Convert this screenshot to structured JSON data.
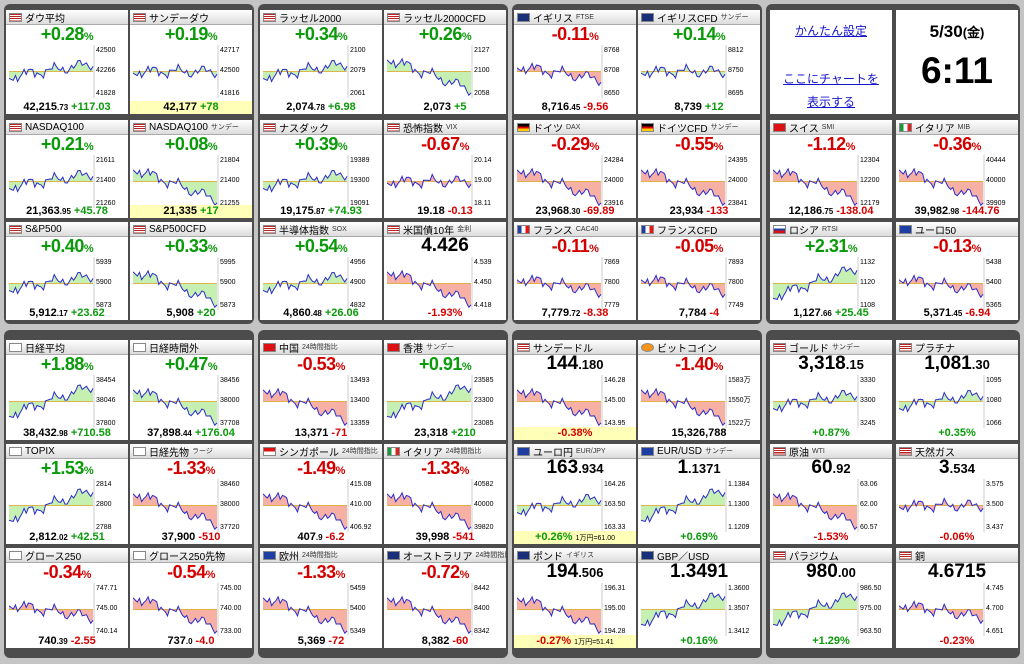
{
  "settings": {
    "quick_settings_label": "かんたん設定",
    "show_chart_line1": "ここにチャートを",
    "show_chart_line2": "表示する"
  },
  "clock": {
    "date": "5/30",
    "weekday": "(金)",
    "time": "6:11"
  },
  "colors": {
    "positive": "#0a9a0a",
    "negative": "#d40000",
    "highlight": "#ffffb8"
  },
  "cards": [
    {
      "name": "dow",
      "title": "ダウ平均",
      "flag": "us",
      "chg": "+0.28",
      "dir": "pos",
      "price": "42,215",
      "dec": ".73",
      "diff": "+117.03",
      "y": [
        "42500",
        "42266",
        "41828"
      ],
      "trend": "flat-up"
    },
    {
      "name": "sun-dow",
      "title": "サンデーダウ",
      "flag": "us",
      "chg": "+0.19",
      "dir": "pos",
      "price": "42,177",
      "diff": "+78",
      "hl": true,
      "y": [
        "42717",
        "42500",
        "41816"
      ],
      "trend": "flat"
    },
    {
      "name": "russell2000",
      "title": "ラッセル2000",
      "flag": "us",
      "chg": "+0.34",
      "dir": "pos",
      "price": "2,074",
      "dec": ".78",
      "diff": "+6.98",
      "y": [
        "2100",
        "2079",
        "2061"
      ],
      "trend": "flat-up"
    },
    {
      "name": "russell2000cfd",
      "title": "ラッセル2000CFD",
      "flag": "us",
      "chg": "+0.26",
      "dir": "pos",
      "price": "2,073",
      "diff": "+5",
      "y": [
        "2127",
        "2100",
        "2058"
      ],
      "trend": "down"
    },
    {
      "name": "uk",
      "title": "イギリス",
      "sub": "FTSE",
      "flag": "uk",
      "chg": "-0.11",
      "dir": "neg",
      "price": "8,716",
      "dec": ".45",
      "diff": "-9.56",
      "y": [
        "8768",
        "8708",
        "8650"
      ],
      "trend": "flat-down"
    },
    {
      "name": "ukcfd",
      "title": "イギリスCFD",
      "sub": "サンデー",
      "flag": "uk",
      "chg": "+0.14",
      "dir": "pos",
      "price": "8,739",
      "diff": "+12",
      "y": [
        "8812",
        "8750",
        "8695"
      ],
      "trend": "flat"
    },
    {
      "name": "nasdaq100",
      "title": "NASDAQ100",
      "flag": "us",
      "chg": "+0.21",
      "dir": "pos",
      "price": "21,363",
      "dec": ".95",
      "diff": "+45.78",
      "y": [
        "21611",
        "21400",
        "21260"
      ],
      "trend": "flat-up"
    },
    {
      "name": "nasdaq100sun",
      "title": "NASDAQ100",
      "sub": "サンデー",
      "flag": "us",
      "chg": "+0.08",
      "dir": "pos",
      "price": "21,335",
      "diff": "+17",
      "hl": true,
      "y": [
        "21804",
        "21400",
        "21255"
      ],
      "trend": "down"
    },
    {
      "name": "nasdaq",
      "title": "ナスダック",
      "flag": "us",
      "chg": "+0.39",
      "dir": "pos",
      "price": "19,175",
      "dec": ".87",
      "diff": "+74.93",
      "y": [
        "19389",
        "19300",
        "19091"
      ],
      "trend": "flat-up"
    },
    {
      "name": "vix",
      "title": "恐怖指数",
      "sub": "VIX",
      "flag": "us",
      "chg": "-0.67",
      "dir": "neg",
      "price": "19.18",
      "diff": "-0.13",
      "y": [
        "20.14",
        "19.00",
        "18.11"
      ],
      "trend": "flat"
    },
    {
      "name": "germany",
      "title": "ドイツ",
      "sub": "DAX",
      "flag": "de",
      "chg": "-0.29",
      "dir": "neg",
      "price": "23,968",
      "dec": ".30",
      "diff": "-69.89",
      "y": [
        "24284",
        "24000",
        "23916"
      ],
      "trend": "down"
    },
    {
      "name": "germanycfd",
      "title": "ドイツCFD",
      "sub": "サンデー",
      "flag": "de",
      "chg": "-0.55",
      "dir": "neg",
      "price": "23,934",
      "diff": "-133",
      "y": [
        "24395",
        "24000",
        "23841"
      ],
      "trend": "down"
    },
    {
      "name": "swiss",
      "title": "スイス",
      "sub": "SMI",
      "flag": "ch",
      "chg": "-1.12",
      "dir": "neg",
      "price": "12,186",
      "dec": ".75",
      "diff": "-138.04",
      "y": [
        "12304",
        "12200",
        "12179"
      ],
      "trend": "down"
    },
    {
      "name": "italy",
      "title": "イタリア",
      "sub": "MIB",
      "flag": "it",
      "chg": "-0.36",
      "dir": "neg",
      "price": "39,982",
      "dec": ".98",
      "diff": "-144.76",
      "y": [
        "40444",
        "40000",
        "39909"
      ],
      "trend": "down"
    },
    {
      "name": "sp500",
      "title": "S&P500",
      "flag": "us",
      "chg": "+0.40",
      "dir": "pos",
      "price": "5,912",
      "dec": ".17",
      "diff": "+23.62",
      "y": [
        "5939",
        "5900",
        "5873"
      ],
      "trend": "flat-up"
    },
    {
      "name": "sp500cfd",
      "title": "S&P500CFD",
      "flag": "us",
      "chg": "+0.33",
      "dir": "pos",
      "price": "5,908",
      "diff": "+20",
      "y": [
        "5995",
        "5900",
        "5873"
      ],
      "trend": "down"
    },
    {
      "name": "sox",
      "title": "半導体指数",
      "sub": "SOX",
      "flag": "us",
      "chg": "+0.54",
      "dir": "pos",
      "price": "4,860",
      "dec": ".48",
      "diff": "+26.06",
      "y": [
        "4956",
        "4900",
        "4832"
      ],
      "trend": "flat-up"
    },
    {
      "name": "us10y",
      "title": "米国債10年",
      "sub": "金利",
      "flag": "us",
      "big": "4.426",
      "bottomchg": "-1.93",
      "dir": "neg",
      "y": [
        "4.539",
        "4.450",
        "4.418"
      ],
      "trend": "down"
    },
    {
      "name": "france",
      "title": "フランス",
      "sub": "CAC40",
      "flag": "fr",
      "chg": "-0.11",
      "dir": "neg",
      "price": "7,779",
      "dec": ".72",
      "diff": "-8.38",
      "y": [
        "7869",
        "7800",
        "7779"
      ],
      "trend": "flat-down"
    },
    {
      "name": "francecfd",
      "title": "フランスCFD",
      "flag": "fr",
      "chg": "-0.05",
      "dir": "neg",
      "price": "7,784",
      "diff": "-4",
      "y": [
        "7893",
        "7800",
        "7749"
      ],
      "trend": "flat-down"
    },
    {
      "name": "russia",
      "title": "ロシア",
      "sub": "RTSI",
      "flag": "ru",
      "chg": "+2.31",
      "dir": "pos",
      "price": "1,127",
      "dec": ".66",
      "diff": "+25.45",
      "y": [
        "1132",
        "1120",
        "1108"
      ],
      "trend": "up"
    },
    {
      "name": "euro50",
      "title": "ユーロ50",
      "flag": "eu",
      "chg": "-0.13",
      "dir": "neg",
      "price": "5,371",
      "dec": ".45",
      "diff": "-6.94",
      "y": [
        "5438",
        "5400",
        "5365"
      ],
      "trend": "flat-down"
    },
    {
      "name": "nikkei",
      "title": "日経平均",
      "flag": "jp",
      "chg": "+1.88",
      "dir": "pos",
      "price": "38,432",
      "dec": ".98",
      "diff": "+710.58",
      "y": [
        "38454",
        "38046",
        "37800"
      ],
      "trend": "up"
    },
    {
      "name": "nikkeiext",
      "title": "日経時間外",
      "flag": "jp",
      "chg": "+0.47",
      "dir": "pos",
      "price": "37,898",
      "dec": ".44",
      "diff": "+176.04",
      "y": [
        "38456",
        "38000",
        "37708"
      ],
      "trend": "down"
    },
    {
      "name": "china",
      "title": "中国",
      "sub": "24時間指比",
      "flag": "cn",
      "chg": "-0.53",
      "dir": "neg",
      "price": "13,371",
      "diff": "-71",
      "y": [
        "13493",
        "13400",
        "13359"
      ],
      "trend": "down"
    },
    {
      "name": "hongkong",
      "title": "香港",
      "sub": "サンデー",
      "flag": "hk",
      "chg": "+0.91",
      "dir": "pos",
      "price": "23,318",
      "diff": "+210",
      "y": [
        "23585",
        "23300",
        "23085"
      ],
      "trend": "up"
    },
    {
      "name": "sunusdjpy",
      "title": "サンデードル",
      "flag": "us",
      "big": "144",
      "dec": ".180",
      "bottomchg": "-0.38",
      "dir": "neg",
      "hlbottom": true,
      "y": [
        "146.28",
        "145.00",
        "143.95"
      ],
      "trend": "down"
    },
    {
      "name": "bitcoin",
      "title": "ビットコイン",
      "flag": "btc",
      "chg": "-1.40",
      "dir": "neg",
      "price": "15,326,788",
      "y": [
        "1583万",
        "1550万",
        "1522万"
      ],
      "trend": "down"
    },
    {
      "name": "gold",
      "title": "ゴールド",
      "sub": "サンデー",
      "flag": "us",
      "big": "3,318",
      "dec": ".15",
      "bottomchg": "+0.87",
      "dir": "pos",
      "y": [
        "3330",
        "3300",
        "3245"
      ],
      "trend": "flat-up"
    },
    {
      "name": "platinum",
      "title": "プラチナ",
      "flag": "us",
      "big": "1,081",
      "dec": ".30",
      "bottomchg": "+0.35",
      "dir": "pos",
      "y": [
        "1095",
        "1080",
        "1066"
      ],
      "trend": "flat-up"
    },
    {
      "name": "topix",
      "title": "TOPIX",
      "flag": "jp",
      "chg": "+1.53",
      "dir": "pos",
      "price": "2,812",
      "dec": ".02",
      "diff": "+42.51",
      "y": [
        "2814",
        "2800",
        "2788"
      ],
      "trend": "up"
    },
    {
      "name": "nikkeifut",
      "title": "日経先物",
      "sub": "ラージ",
      "flag": "jp",
      "chg": "-1.33",
      "dir": "neg",
      "price": "37,900",
      "diff": "-510",
      "y": [
        "38460",
        "38000",
        "37720"
      ],
      "trend": "down"
    },
    {
      "name": "singapore",
      "title": "シンガポール",
      "sub": "24時間指比",
      "flag": "sg",
      "chg": "-1.49",
      "dir": "neg",
      "price": "407",
      "dec": ".9",
      "diff": "-6.2",
      "y": [
        "415.08",
        "410.00",
        "406.92"
      ],
      "trend": "down"
    },
    {
      "name": "italy24",
      "title": "イタリア",
      "sub": "24時間指比",
      "flag": "it",
      "chg": "-1.33",
      "dir": "neg",
      "price": "39,998",
      "diff": "-541",
      "y": [
        "40582",
        "40000",
        "39820"
      ],
      "trend": "down"
    },
    {
      "name": "eurjpy",
      "title": "ユーロ円",
      "sub": "EUR/JPY",
      "flag": "eu",
      "big": "163",
      "dec": ".934",
      "bottomchg": "+0.26",
      "dir": "pos",
      "bottomnote": "1万円=61.00",
      "hlbottom": true,
      "y": [
        "164.26",
        "163.50",
        "163.33"
      ],
      "trend": "flat-up"
    },
    {
      "name": "eurusd",
      "title": "EUR/USD",
      "sub": "サンデー",
      "flag": "eu",
      "big": "1",
      "dec": ".1371",
      "bottomchg": "+0.69",
      "dir": "pos",
      "y": [
        "1.1384",
        "1.1300",
        "1.1209"
      ],
      "trend": "up"
    },
    {
      "name": "crude",
      "title": "原油",
      "sub": "WTI",
      "flag": "us",
      "big": "60",
      "dec": ".92",
      "bottomchg": "-1.53",
      "dir": "neg",
      "y": [
        "63.06",
        "62.00",
        "60.57"
      ],
      "trend": "down"
    },
    {
      "name": "natgas",
      "title": "天然ガス",
      "flag": "us",
      "big": "3",
      "dec": ".534",
      "bottomchg": "-0.06",
      "dir": "neg",
      "y": [
        "3.575",
        "3.500",
        "3.437"
      ],
      "trend": "flat"
    },
    {
      "name": "growth250",
      "title": "グロース250",
      "flag": "jp",
      "chg": "-0.34",
      "dir": "neg",
      "price": "740",
      "dec": ".39",
      "diff": "-2.55",
      "y": [
        "747.71",
        "745.00",
        "740.14"
      ],
      "trend": "flat-down"
    },
    {
      "name": "growth250fut",
      "title": "グロース250先物",
      "flag": "jp",
      "chg": "-0.54",
      "dir": "neg",
      "price": "737",
      "dec": ".0",
      "diff": "-4.0",
      "y": [
        "745.00",
        "740.00",
        "733.00"
      ],
      "trend": "down"
    },
    {
      "name": "europe",
      "title": "欧州",
      "sub": "24時間指比",
      "flag": "eu",
      "chg": "-1.33",
      "dir": "neg",
      "price": "5,369",
      "diff": "-72",
      "y": [
        "5459",
        "5400",
        "5349"
      ],
      "trend": "down"
    },
    {
      "name": "australia",
      "title": "オーストラリア",
      "sub": "24時間指比",
      "flag": "au",
      "chg": "-0.72",
      "dir": "neg",
      "price": "8,382",
      "diff": "-60",
      "y": [
        "8442",
        "8400",
        "8342"
      ],
      "trend": "down"
    },
    {
      "name": "gbpjpy",
      "title": "ポンド",
      "sub": "イギリス",
      "flag": "uk",
      "big": "194",
      "dec": ".506",
      "bottomchg": "-0.27",
      "dir": "neg",
      "bottomnote": "1万円=51.41",
      "hlbottom": true,
      "y": [
        "196.31",
        "195.00",
        "194.28"
      ],
      "trend": "down"
    },
    {
      "name": "gbpusd",
      "title": "GBP／USD",
      "flag": "uk",
      "big": "1.3491",
      "bottomchg": "+0.16",
      "dir": "pos",
      "y": [
        "1.3600",
        "1.3507",
        "1.3412"
      ],
      "trend": "up"
    },
    {
      "name": "palladium",
      "title": "パラジウム",
      "flag": "us",
      "big": "980",
      "dec": ".00",
      "bottomchg": "+1.29",
      "dir": "pos",
      "y": [
        "986.50",
        "975.00",
        "963.50"
      ],
      "trend": "up"
    },
    {
      "name": "copper",
      "title": "銅",
      "flag": "us",
      "big": "4.6715",
      "bottomchg": "-0.23",
      "dir": "neg",
      "y": [
        "4.745",
        "4.700",
        "4.651"
      ],
      "trend": "flat-down"
    }
  ]
}
